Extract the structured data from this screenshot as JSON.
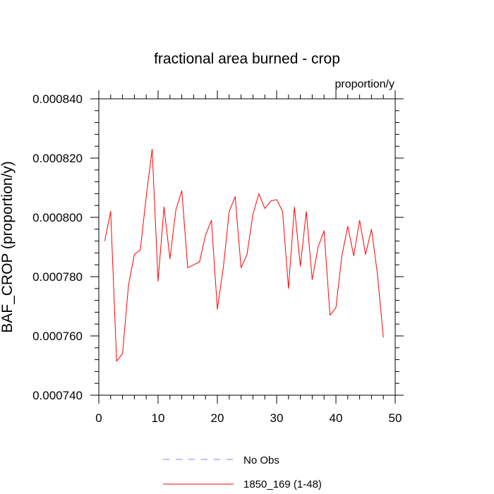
{
  "chart_data": {
    "type": "line",
    "title": "fractional area burned - crop",
    "units": "proportion/y",
    "ylabel": "BAF_CROP  (proportion/y)",
    "xlabel": "",
    "xlim": [
      0,
      50
    ],
    "ylim": [
      0.00074,
      0.00084
    ],
    "xticks": [
      0,
      10,
      20,
      30,
      40,
      50
    ],
    "xtick_labels": [
      "0",
      "10",
      "20",
      "30",
      "40",
      "50"
    ],
    "yticks": [
      0.00074,
      0.00076,
      0.00078,
      0.0008,
      0.00082,
      0.00084
    ],
    "ytick_labels": [
      "0.000740",
      "0.000760",
      "0.000780",
      "0.000800",
      "0.000820",
      "0.000840"
    ],
    "grid": false,
    "legend_position": "bottom",
    "series": [
      {
        "name": "No Obs",
        "color": "#8080ff",
        "dash": "dashed",
        "x": [],
        "values": []
      },
      {
        "name": "1850_169 (1-48)",
        "color": "#ff0000",
        "dash": "solid",
        "x": [
          1,
          2,
          3,
          4,
          5,
          6,
          7,
          8,
          9,
          10,
          11,
          12,
          13,
          14,
          15,
          16,
          17,
          18,
          19,
          20,
          21,
          22,
          23,
          24,
          25,
          26,
          27,
          28,
          29,
          30,
          31,
          32,
          33,
          34,
          35,
          36,
          37,
          38,
          39,
          40,
          41,
          42,
          43,
          44,
          45,
          46,
          47,
          48
        ],
        "values": [
          0.000792,
          0.000802,
          0.0007515,
          0.000754,
          0.000777,
          0.0007875,
          0.000789,
          0.000807,
          0.000823,
          0.0007785,
          0.0008035,
          0.000786,
          0.0008025,
          0.000809,
          0.000783,
          0.000784,
          0.000785,
          0.000794,
          0.000799,
          0.000769,
          0.000783,
          0.000802,
          0.000807,
          0.000783,
          0.0007875,
          0.000801,
          0.000808,
          0.000803,
          0.0008055,
          0.000806,
          0.000802,
          0.000776,
          0.0008035,
          0.0007835,
          0.000802,
          0.000779,
          0.00079,
          0.0007955,
          0.000767,
          0.0007695,
          0.000787,
          0.000797,
          0.000787,
          0.000799,
          0.0007875,
          0.000796,
          0.000781,
          0.0007595
        ]
      }
    ]
  }
}
